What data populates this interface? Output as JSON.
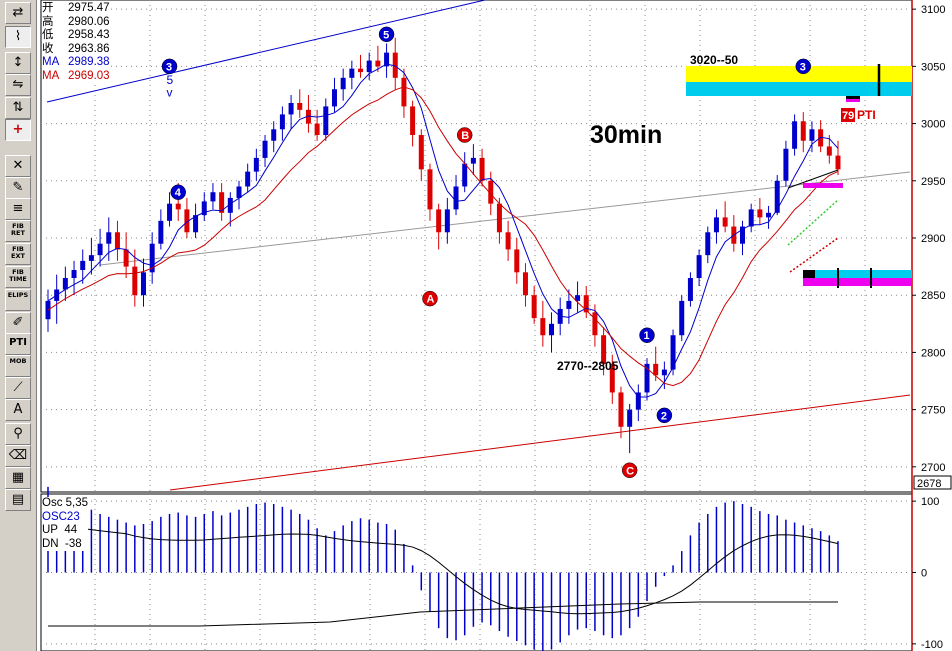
{
  "toolbar": {
    "tools": [
      {
        "id": "reset",
        "label": "RESET",
        "glyph": "⇄"
      },
      {
        "id": "elliott",
        "label": "Elliott",
        "glyph": "⌇"
      },
      {
        "id": "wave-count",
        "label": "",
        "glyph": "↕"
      },
      {
        "id": "wave-compare",
        "label": "",
        "glyph": "⇋"
      },
      {
        "id": "wave-split",
        "label": "",
        "glyph": "⇅"
      },
      {
        "id": "crosshair",
        "label": "",
        "glyph": "+"
      },
      {
        "id": "delete",
        "label": "",
        "glyph": "✕"
      },
      {
        "id": "pencil",
        "label": "",
        "glyph": "✎"
      },
      {
        "id": "channel",
        "label": "",
        "glyph": "≡"
      },
      {
        "id": "fib-ret",
        "label": "FIB RET",
        "glyph": ""
      },
      {
        "id": "fib-ext",
        "label": "FIB EXT",
        "glyph": ""
      },
      {
        "id": "fib-time",
        "label": "FIB TIME",
        "glyph": ""
      },
      {
        "id": "ellipse",
        "label": "ELIPS",
        "glyph": ""
      },
      {
        "id": "ruler",
        "label": "",
        "glyph": "✐"
      },
      {
        "id": "pti",
        "label": "PTI",
        "glyph": ""
      },
      {
        "id": "mob",
        "label": "MOB",
        "glyph": ""
      },
      {
        "id": "line",
        "label": "",
        "glyph": "⟋"
      },
      {
        "id": "text",
        "label": "",
        "glyph": "A"
      },
      {
        "id": "zoom",
        "label": "",
        "glyph": "⚲"
      },
      {
        "id": "eraser",
        "label": "",
        "glyph": "⌫"
      },
      {
        "id": "grid",
        "label": "",
        "glyph": "▦"
      },
      {
        "id": "notes",
        "label": "",
        "glyph": "▤"
      }
    ]
  },
  "quote": {
    "rows": [
      {
        "label": "开",
        "value": "2975.47",
        "color": "#000000"
      },
      {
        "label": "高",
        "value": "2980.06",
        "color": "#000000"
      },
      {
        "label": "低",
        "value": "2958.43",
        "color": "#000000"
      },
      {
        "label": "收",
        "value": "2963.86",
        "color": "#000000"
      },
      {
        "label": "MA",
        "value": "2989.38",
        "color": "#0000cc"
      },
      {
        "label": "MA",
        "value": "2969.03",
        "color": "#cc0000"
      }
    ]
  },
  "oscillator_panel": {
    "title": "Osc 5,35",
    "name": "OSC23",
    "up_label": "UP",
    "up_value": "44",
    "dn_label": "DN",
    "dn_value": "-38"
  },
  "timeframe_label": "30min",
  "price_axis": {
    "ticks": [
      "3100",
      "3050",
      "3000",
      "2950",
      "2900",
      "2850",
      "2800",
      "2750",
      "2700"
    ],
    "cursor_value": "2678",
    "osc_ticks": [
      "100",
      "0",
      "-100"
    ]
  },
  "annotations": {
    "target_zone": "3020--50",
    "support_zone": "2770--2805",
    "pti_value": "79",
    "pti_label": "PTI"
  },
  "colors": {
    "up_candle": "#0000cc",
    "down_candle": "#dd0000",
    "doji_candle": "#000000",
    "ma_fast": "#0000cc",
    "ma_slow": "#cc0000",
    "zone_yellow": "#ffff00",
    "zone_cyan": "#00ccee",
    "zone_magenta": "#ee00ee"
  },
  "chart_data": {
    "type": "candlestick",
    "ylim": [
      2678,
      3108
    ],
    "y_ticks": [
      2700,
      2750,
      2800,
      2850,
      2900,
      2950,
      3000,
      3050,
      3100
    ],
    "osc_ylim": [
      -110,
      110
    ],
    "osc_ticks": [
      100,
      0,
      -100
    ],
    "candles": [
      [
        2829,
        2855,
        2818,
        2845
      ],
      [
        2845,
        2868,
        2825,
        2855
      ],
      [
        2855,
        2875,
        2845,
        2865
      ],
      [
        2865,
        2880,
        2850,
        2872
      ],
      [
        2872,
        2890,
        2860,
        2880
      ],
      [
        2880,
        2900,
        2868,
        2885
      ],
      [
        2885,
        2908,
        2875,
        2895
      ],
      [
        2895,
        2918,
        2880,
        2905
      ],
      [
        2905,
        2915,
        2880,
        2890
      ],
      [
        2890,
        2905,
        2865,
        2875
      ],
      [
        2875,
        2890,
        2840,
        2850
      ],
      [
        2850,
        2882,
        2840,
        2870
      ],
      [
        2870,
        2905,
        2860,
        2895
      ],
      [
        2895,
        2925,
        2890,
        2915
      ],
      [
        2915,
        2940,
        2910,
        2930
      ],
      [
        2930,
        2948,
        2915,
        2925
      ],
      [
        2925,
        2935,
        2900,
        2905
      ],
      [
        2905,
        2930,
        2900,
        2920
      ],
      [
        2920,
        2940,
        2915,
        2932
      ],
      [
        2932,
        2948,
        2925,
        2940
      ],
      [
        2940,
        2948,
        2915,
        2922
      ],
      [
        2922,
        2940,
        2910,
        2935
      ],
      [
        2935,
        2950,
        2925,
        2945
      ],
      [
        2945,
        2965,
        2940,
        2958
      ],
      [
        2958,
        2978,
        2950,
        2970
      ],
      [
        2970,
        2990,
        2962,
        2985
      ],
      [
        2985,
        3002,
        2975,
        2995
      ],
      [
        2995,
        3015,
        2985,
        3008
      ],
      [
        3008,
        3025,
        2995,
        3018
      ],
      [
        3018,
        3030,
        3005,
        3012
      ],
      [
        3012,
        3025,
        2992,
        3000
      ],
      [
        3000,
        3012,
        2985,
        2990
      ],
      [
        2990,
        3022,
        2985,
        3015
      ],
      [
        3015,
        3040,
        3010,
        3030
      ],
      [
        3030,
        3048,
        3020,
        3040
      ],
      [
        3040,
        3055,
        3030,
        3048
      ],
      [
        3048,
        3060,
        3040,
        3045
      ],
      [
        3045,
        3062,
        3038,
        3055
      ],
      [
        3055,
        3068,
        3045,
        3050
      ],
      [
        3050,
        3070,
        3040,
        3062
      ],
      [
        3062,
        3075,
        3030,
        3040
      ],
      [
        3040,
        3048,
        3005,
        3015
      ],
      [
        3015,
        3020,
        2980,
        2990
      ],
      [
        2990,
        2995,
        2950,
        2960
      ],
      [
        2960,
        2965,
        2915,
        2925
      ],
      [
        2925,
        2930,
        2890,
        2905
      ],
      [
        2905,
        2935,
        2895,
        2925
      ],
      [
        2925,
        2955,
        2920,
        2945
      ],
      [
        2945,
        2975,
        2940,
        2965
      ],
      [
        2965,
        2982,
        2955,
        2970
      ],
      [
        2970,
        2978,
        2945,
        2950
      ],
      [
        2950,
        2958,
        2920,
        2930
      ],
      [
        2930,
        2935,
        2895,
        2905
      ],
      [
        2905,
        2915,
        2880,
        2890
      ],
      [
        2890,
        2900,
        2860,
        2870
      ],
      [
        2870,
        2878,
        2840,
        2850
      ],
      [
        2850,
        2858,
        2825,
        2830
      ],
      [
        2830,
        2845,
        2805,
        2815
      ],
      [
        2815,
        2835,
        2800,
        2825
      ],
      [
        2825,
        2848,
        2815,
        2838
      ],
      [
        2838,
        2855,
        2825,
        2845
      ],
      [
        2845,
        2862,
        2835,
        2850
      ],
      [
        2850,
        2858,
        2830,
        2835
      ],
      [
        2835,
        2842,
        2805,
        2815
      ],
      [
        2815,
        2822,
        2780,
        2790
      ],
      [
        2790,
        2798,
        2755,
        2765
      ],
      [
        2765,
        2770,
        2725,
        2735
      ],
      [
        2735,
        2755,
        2712,
        2750
      ],
      [
        2750,
        2772,
        2740,
        2765
      ],
      [
        2765,
        2795,
        2758,
        2790
      ],
      [
        2790,
        2805,
        2775,
        2780
      ],
      [
        2780,
        2792,
        2768,
        2785
      ],
      [
        2785,
        2820,
        2780,
        2815
      ],
      [
        2815,
        2850,
        2810,
        2845
      ],
      [
        2845,
        2870,
        2840,
        2865
      ],
      [
        2865,
        2890,
        2858,
        2885
      ],
      [
        2885,
        2910,
        2878,
        2905
      ],
      [
        2905,
        2925,
        2895,
        2918
      ],
      [
        2918,
        2932,
        2905,
        2910
      ],
      [
        2910,
        2920,
        2888,
        2895
      ],
      [
        2895,
        2915,
        2885,
        2910
      ],
      [
        2910,
        2930,
        2905,
        2925
      ],
      [
        2925,
        2935,
        2912,
        2918
      ],
      [
        2918,
        2928,
        2908,
        2922
      ],
      [
        2922,
        2955,
        2920,
        2950
      ],
      [
        2950,
        2985,
        2945,
        2978
      ],
      [
        2978,
        3008,
        2972,
        3002
      ],
      [
        3002,
        3010,
        2975,
        2985
      ],
      [
        2985,
        3002,
        2975,
        2995
      ],
      [
        2995,
        3003,
        2975,
        2980
      ],
      [
        2980,
        2990,
        2965,
        2972
      ],
      [
        2972,
        2985,
        2955,
        2960
      ]
    ],
    "ma_fast_label": "MA 2989.38",
    "ma_slow_label": "MA 2969.03",
    "osc_values": [
      120,
      105,
      100,
      96,
      92,
      88,
      82,
      78,
      74,
      70,
      66,
      68,
      72,
      78,
      82,
      84,
      80,
      78,
      82,
      86,
      80,
      84,
      88,
      92,
      96,
      98,
      96,
      92,
      88,
      82,
      74,
      62,
      52,
      58,
      66,
      72,
      76,
      74,
      70,
      68,
      60,
      40,
      10,
      -25,
      -55,
      -78,
      -92,
      -95,
      -88,
      -76,
      -70,
      -74,
      -82,
      -90,
      -96,
      -102,
      -108,
      -112,
      -108,
      -98,
      -88,
      -80,
      -78,
      -82,
      -88,
      -92,
      -88,
      -78,
      -62,
      -40,
      -20,
      -5,
      10,
      30,
      52,
      70,
      82,
      92,
      98,
      100,
      96,
      92,
      86,
      82,
      80,
      74,
      70,
      66,
      62,
      58,
      52,
      44
    ],
    "wave_labels": [
      {
        "text": "3",
        "idx": 14,
        "price": 3050,
        "style": "circle-blue"
      },
      {
        "text": "5",
        "idx": 14,
        "price": 3038,
        "style": "blue"
      },
      {
        "text": "v",
        "idx": 14,
        "price": 3027,
        "style": "blue"
      },
      {
        "text": "5",
        "idx": 39,
        "price": 3078,
        "style": "circle-blue"
      },
      {
        "text": "4",
        "idx": 15,
        "price": 2940,
        "style": "circle-blue"
      },
      {
        "text": "B",
        "idx": 48,
        "price": 2990,
        "style": "circle-red"
      },
      {
        "text": "A",
        "idx": 44,
        "price": 2847,
        "style": "circle-red"
      },
      {
        "text": "C",
        "idx": 67,
        "price": 2697,
        "style": "circle-red"
      },
      {
        "text": "1",
        "idx": 69,
        "price": 2815,
        "style": "circle-blue"
      },
      {
        "text": "2",
        "idx": 71,
        "price": 2745,
        "style": "circle-blue"
      },
      {
        "text": "3",
        "idx": 87,
        "price": 3050,
        "style": "circle-blue"
      }
    ]
  }
}
